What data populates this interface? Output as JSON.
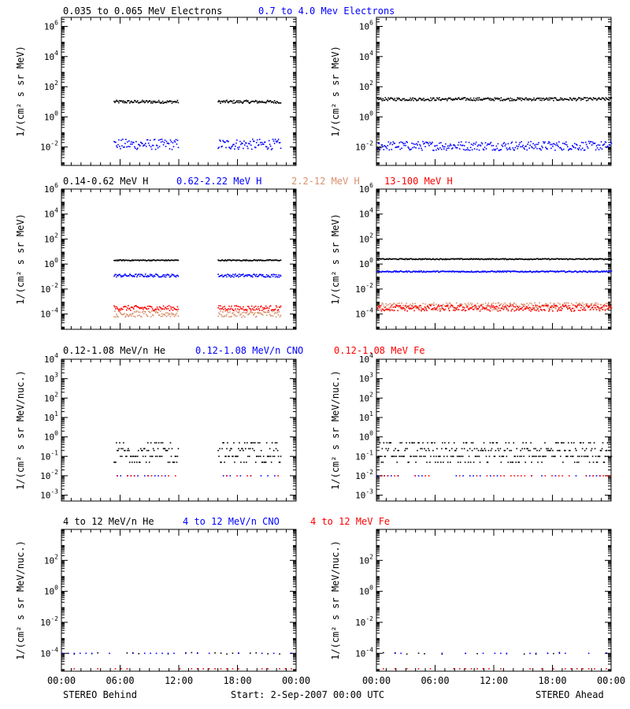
{
  "footer": {
    "left": "STEREO Behind",
    "center": "Start:  2-Sep-2007 00:00 UTC",
    "right": "STEREO Ahead"
  },
  "colors": {
    "black": "#000000",
    "blue": "#0000ff",
    "salmon": "#d8906c",
    "red": "#ff0000"
  },
  "rows": [
    {
      "titles": [
        {
          "text": "0.035 to 0.065 MeV Electrons",
          "color": "#000000"
        },
        {
          "text": "0.7 to 4.0 Mev Electrons",
          "color": "#0000ff"
        }
      ]
    },
    {
      "titles": [
        {
          "text": "0.14-0.62 MeV H",
          "color": "#000000"
        },
        {
          "text": "0.62-2.22 MeV H",
          "color": "#0000ff"
        },
        {
          "text": "2.2-12 MeV H",
          "color": "#d8906c"
        },
        {
          "text": "13-100 MeV H",
          "color": "#ff0000"
        }
      ]
    },
    {
      "titles": [
        {
          "text": "0.12-1.08 MeV/n He",
          "color": "#000000"
        },
        {
          "text": "0.12-1.08 MeV/n CNO",
          "color": "#0000ff"
        },
        {
          "text": "0.12-1.08 MeV Fe",
          "color": "#ff0000"
        }
      ]
    },
    {
      "titles": [
        {
          "text": "4 to 12 MeV/n He",
          "color": "#000000"
        },
        {
          "text": "4 to 12 MeV/n CNO",
          "color": "#0000ff"
        },
        {
          "text": "4 to 12 MeV Fe",
          "color": "#ff0000"
        }
      ]
    }
  ],
  "chart_data": [
    {
      "type": "scatter",
      "panel": "electrons-behind",
      "spacecraft": "STEREO Behind",
      "ylabel": "1/(cm² s sr MeV)",
      "yscale": "log",
      "ylim": [
        0.0006,
        4000000
      ],
      "yticks": [
        "10-2",
        "100",
        "102",
        "104",
        "106"
      ],
      "xlim": [
        "00:00",
        "24:00"
      ],
      "xticks": [
        "00:00",
        "06:00",
        "12:00",
        "18:00",
        "00:00"
      ],
      "gaps": [
        [
          0,
          5.3
        ],
        [
          11.9,
          15.9
        ],
        [
          22.4,
          24
        ]
      ],
      "series": [
        {
          "name": "0.035 to 0.065 MeV Electrons",
          "color": "#000000",
          "level": 10,
          "spread": 0.1
        },
        {
          "name": "0.7 to 4.0 Mev Electrons",
          "color": "#0000ff",
          "level": 0.015,
          "spread": 0.35
        }
      ]
    },
    {
      "type": "scatter",
      "panel": "electrons-ahead",
      "spacecraft": "STEREO Ahead",
      "ylabel": "1/(cm² s sr MeV)",
      "yscale": "log",
      "ylim": [
        0.0006,
        4000000
      ],
      "yticks": [
        "10-2",
        "100",
        "102",
        "104",
        "106"
      ],
      "xlim": [
        "00:00",
        "24:00"
      ],
      "xticks": [
        "00:00",
        "06:00",
        "12:00",
        "18:00",
        "00:00"
      ],
      "gaps": [],
      "series": [
        {
          "color": "#000000",
          "level": 15,
          "spread": 0.1
        },
        {
          "color": "#0000ff",
          "level": 0.012,
          "spread": 0.3
        }
      ]
    },
    {
      "type": "scatter",
      "panel": "protons-behind",
      "spacecraft": "STEREO Behind",
      "ylabel": "1/(cm² s sr MeV)",
      "yscale": "log",
      "ylim": [
        6e-06,
        1000000
      ],
      "yticks": [
        "10-4",
        "10-2",
        "100",
        "102",
        "104",
        "106"
      ],
      "xlim": [
        "00:00",
        "24:00"
      ],
      "xticks": [
        "00:00",
        "06:00",
        "12:00",
        "18:00",
        "00:00"
      ],
      "gaps": [
        [
          0,
          5.3
        ],
        [
          11.9,
          15.9
        ],
        [
          22.4,
          24
        ]
      ],
      "series": [
        {
          "name": "0.14-0.62 MeV H",
          "color": "#000000",
          "level": 2,
          "spread": 0.04
        },
        {
          "name": "0.62-2.22 MeV H",
          "color": "#0000ff",
          "level": 0.12,
          "spread": 0.12
        },
        {
          "name": "2.2-12 MeV H",
          "color": "#d8906c",
          "level": 0.0001,
          "spread": 0.25
        },
        {
          "name": "13-100 MeV H",
          "color": "#ff0000",
          "level": 0.0003,
          "spread": 0.2
        }
      ]
    },
    {
      "type": "scatter",
      "panel": "protons-ahead",
      "spacecraft": "STEREO Ahead",
      "ylabel": "1/(cm² s sr MeV)",
      "yscale": "log",
      "ylim": [
        6e-06,
        1000000
      ],
      "yticks": [
        "10-4",
        "10-2",
        "100",
        "102",
        "104",
        "106"
      ],
      "xlim": [
        "00:00",
        "24:00"
      ],
      "xticks": [
        "00:00",
        "06:00",
        "12:00",
        "18:00",
        "00:00"
      ],
      "gaps": [],
      "series": [
        {
          "color": "#000000",
          "level": 2.5,
          "spread": 0.04
        },
        {
          "color": "#0000ff",
          "level": 0.25,
          "spread": 0.05
        },
        {
          "color": "#d8906c",
          "level": 0.0004,
          "spread": 0.3
        },
        {
          "color": "#ff0000",
          "level": 0.0003,
          "spread": 0.25
        }
      ]
    },
    {
      "type": "scatter",
      "panel": "ions-behind",
      "spacecraft": "STEREO Behind",
      "ylabel": "1/(cm² s sr MeV/nuc.)",
      "yscale": "log",
      "ylim": [
        0.0005,
        10000
      ],
      "yticks": [
        "10-3",
        "10-2",
        "10-1",
        "100",
        "101",
        "102",
        "103",
        "104"
      ],
      "xlim": [
        "00:00",
        "24:00"
      ],
      "xticks": [
        "00:00",
        "06:00",
        "12:00",
        "18:00",
        "00:00"
      ],
      "gaps": [
        [
          0,
          5.3
        ],
        [
          11.9,
          15.9
        ],
        [
          22.4,
          24
        ]
      ],
      "series": [
        {
          "name": "0.12-1.08 MeV/n He",
          "color": "#000000",
          "level": 0.1,
          "spread": 0.2
        },
        {
          "name": "0.12-1.08 MeV/n CNO",
          "color": "#0000ff",
          "level": 0.01,
          "spread": 0.0
        },
        {
          "name": "0.12-1.08 MeV Fe",
          "color": "#ff0000",
          "level": 0.01,
          "spread": 0.0
        }
      ]
    },
    {
      "type": "scatter",
      "panel": "ions-ahead",
      "spacecraft": "STEREO Ahead",
      "ylabel": "1/(cm² s sr MeV/nuc.)",
      "yscale": "log",
      "ylim": [
        0.0005,
        10000
      ],
      "yticks": [
        "10-3",
        "10-2",
        "10-1",
        "100",
        "101",
        "102",
        "103",
        "104"
      ],
      "xlim": [
        "00:00",
        "24:00"
      ],
      "xticks": [
        "00:00",
        "06:00",
        "12:00",
        "18:00",
        "00:00"
      ],
      "gaps": [],
      "series": [
        {
          "color": "#000000",
          "level": 0.2,
          "spread": 0.3
        },
        {
          "color": "#0000ff",
          "level": 0.01,
          "spread": 0.0
        },
        {
          "color": "#ff0000",
          "level": 0.01,
          "spread": 0.0
        }
      ]
    },
    {
      "type": "scatter",
      "panel": "heavy-ions-behind",
      "spacecraft": "STEREO Behind",
      "ylabel": "1/(cm² s sr MeV/nuc.)",
      "yscale": "log",
      "ylim": [
        7e-06,
        10000
      ],
      "yticks": [
        "10-4",
        "10-2",
        "100",
        "102"
      ],
      "xlim": [
        "00:00",
        "24:00"
      ],
      "xticks": [
        "00:00",
        "06:00",
        "12:00",
        "18:00",
        "00:00"
      ],
      "gaps": [],
      "series": [
        {
          "name": "4 to 12 MeV/n He",
          "color": "#000000",
          "level": 0.0001,
          "spread": 0.05
        },
        {
          "name": "4 to 12 MeV/n CNO",
          "color": "#0000ff",
          "level": 0.0001,
          "spread": 0.0
        },
        {
          "name": "4 to 12 MeV Fe",
          "color": "#ff0000",
          "level": 1e-05,
          "spread": 0.0
        }
      ]
    },
    {
      "type": "scatter",
      "panel": "heavy-ions-ahead",
      "spacecraft": "STEREO Ahead",
      "ylabel": "1/(cm² s sr MeV/nuc.)",
      "yscale": "log",
      "ylim": [
        7e-06,
        10000
      ],
      "yticks": [
        "10-4",
        "10-2",
        "100",
        "102"
      ],
      "xlim": [
        "00:00",
        "24:00"
      ],
      "xticks": [
        "00:00",
        "06:00",
        "12:00",
        "18:00",
        "00:00"
      ],
      "gaps": [],
      "series": [
        {
          "color": "#000000",
          "level": 0.0001,
          "spread": 0.05
        },
        {
          "color": "#0000ff",
          "level": 0.0001,
          "spread": 0.0
        },
        {
          "color": "#ff0000",
          "level": 1e-05,
          "spread": 0.0
        }
      ]
    }
  ]
}
